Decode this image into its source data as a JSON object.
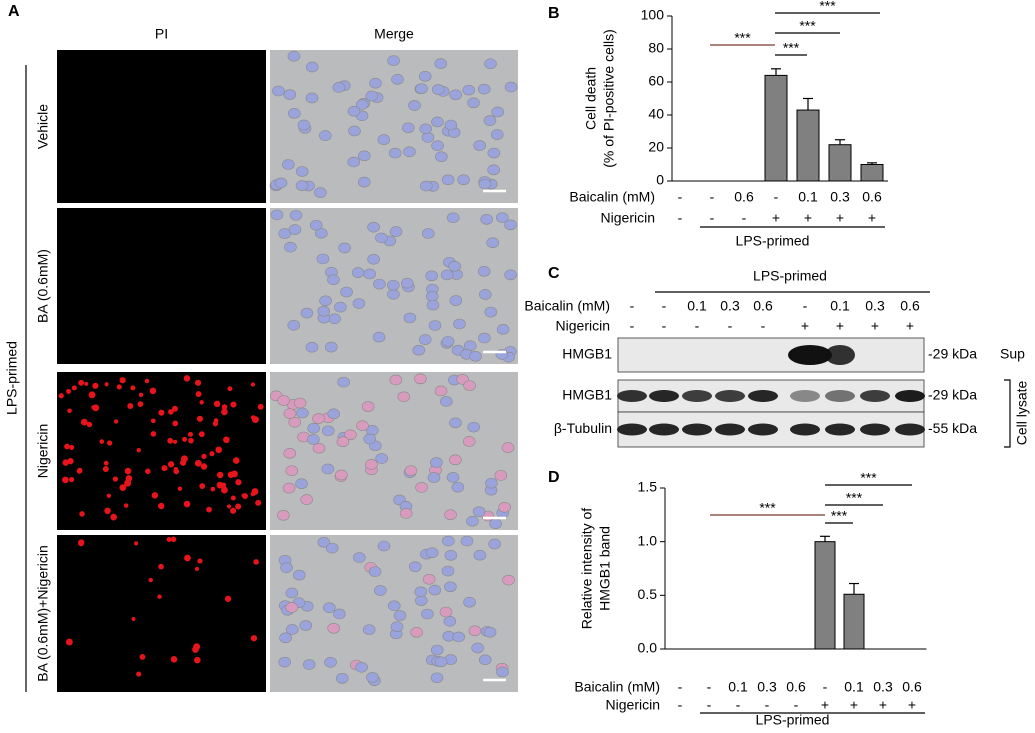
{
  "panel_a": {
    "label": "A",
    "columns": [
      "PI",
      "Merge"
    ],
    "rows": [
      "Vehicle",
      "BA (0.6mM)",
      "Nigericin",
      "BA (0.6mM)+Nigericin"
    ],
    "group": "LPS-primed"
  },
  "chart_data": [
    {
      "type": "bar",
      "panel_label": "B",
      "y_label": [
        "Cell death",
        "(% of PI-positive cells)"
      ],
      "ylim": [
        0,
        100
      ],
      "yticks": [
        0,
        20,
        40,
        60,
        80,
        100
      ],
      "values": [
        0,
        0,
        0,
        64,
        43,
        22,
        10
      ],
      "errors": [
        0,
        0,
        0,
        4,
        7,
        3,
        1
      ],
      "color": "#808080",
      "table": [
        {
          "label": "Baicalin (mM)",
          "cells": [
            "-",
            "-",
            "0.6",
            "-",
            "0.1",
            "0.3",
            "0.6"
          ]
        },
        {
          "label": "Nigericin",
          "cells": [
            "-",
            "-",
            "-",
            "+",
            "+",
            "+",
            "+"
          ]
        }
      ],
      "group_label": "LPS-primed",
      "significance": [
        "***",
        "***",
        "***",
        "***"
      ]
    },
    {
      "type": "bar",
      "panel_label": "D",
      "y_label": [
        "Relative intensity of",
        "HMGB1 band"
      ],
      "ylim": [
        0,
        1.5
      ],
      "yticks": [
        {
          "value": 0,
          "label": "0.0"
        },
        0.5,
        {
          "value": 1,
          "label": "1.0"
        },
        1.5
      ],
      "values": [
        0,
        0,
        0,
        0,
        0,
        1.0,
        0.51,
        0,
        0
      ],
      "errors": [
        0,
        0,
        0,
        0,
        0,
        0.05,
        0.1,
        0,
        0
      ],
      "color": "#808080",
      "table": [
        {
          "label": "Baicalin (mM)",
          "cells": [
            "-",
            "-",
            "0.1",
            "0.3",
            "0.6",
            "-",
            "0.1",
            "0.3",
            "0.6"
          ]
        },
        {
          "label": "Nigericin",
          "cells": [
            "-",
            "-",
            "-",
            "-",
            "-",
            "+",
            "+",
            "+",
            "+"
          ]
        }
      ],
      "group_label": "LPS-primed",
      "significance": [
        "***",
        "***",
        "***",
        "***"
      ]
    }
  ],
  "panel_c": {
    "label": "C",
    "group_label": "LPS-primed",
    "table": [
      {
        "label": "Baicalin (mM)",
        "cells": [
          "-",
          "-",
          "0.1",
          "0.3",
          "0.6",
          "-",
          "0.1",
          "0.3",
          "0.6"
        ]
      },
      {
        "label": "Nigericin",
        "cells": [
          "-",
          "-",
          "-",
          "-",
          "-",
          "+",
          "+",
          "+",
          "+"
        ]
      }
    ],
    "blots": [
      {
        "name": "HMGB1",
        "size": "-29 kDa",
        "fraction": "Sup"
      },
      {
        "name": "HMGB1",
        "size": "-29 kDa"
      },
      {
        "name": "β-Tubulin",
        "size": "-55 kDa"
      }
    ],
    "lysate_label": "Cell lysate"
  }
}
